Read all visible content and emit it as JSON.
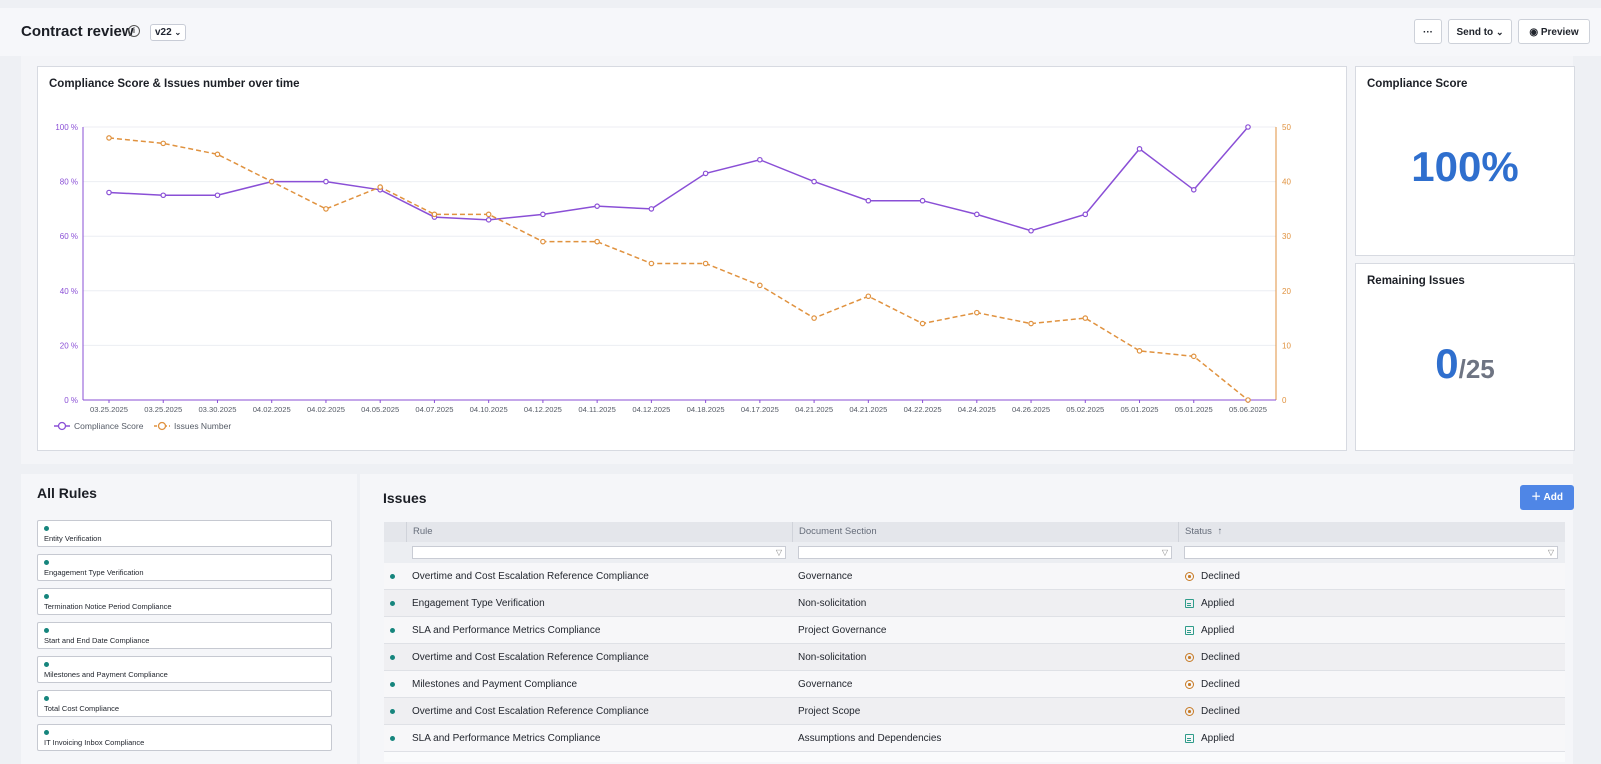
{
  "header": {
    "title": "Contract review",
    "version": "v22",
    "more_label": "···",
    "send_to_label": "Send to",
    "preview_label": "Preview"
  },
  "chart_card": {
    "title": "Compliance Score & Issues number over time"
  },
  "chart_data": {
    "type": "line",
    "x": [
      "03.25.2025",
      "03.25.2025",
      "03.30.2025",
      "04.02.2025",
      "04.02.2025",
      "04.05.2025",
      "04.07.2025",
      "04.10.2025",
      "04.12.2025",
      "04.11.2025",
      "04.12.2025",
      "04.18.2025",
      "04.17.2025",
      "04.21.2025",
      "04.21.2025",
      "04.22.2025",
      "04.24.2025",
      "04.26.2025",
      "05.02.2025",
      "05.01.2025",
      "05.01.2025",
      "05.06.2025"
    ],
    "series": [
      {
        "name": "Compliance Score",
        "axis": "left",
        "color": "#8a4fd6",
        "values": [
          76,
          75,
          75,
          80,
          80,
          77,
          67,
          66,
          68,
          71,
          70,
          83,
          88,
          80,
          73,
          73,
          68,
          62,
          68,
          92,
          77,
          100
        ]
      },
      {
        "name": "Issues Number",
        "axis": "right",
        "color": "#e0923f",
        "dashed": true,
        "values": [
          48,
          47,
          45,
          40,
          35,
          39,
          34,
          34,
          29,
          29,
          25,
          25,
          21,
          15,
          19,
          14,
          16,
          14,
          15,
          9,
          8,
          0
        ]
      }
    ],
    "y_left": {
      "ylim": [
        0,
        100
      ],
      "ticks": [
        "0 %",
        "20 %",
        "40 %",
        "60 %",
        "80 %",
        "100 %"
      ]
    },
    "y_right": {
      "ylim": [
        0,
        50
      ],
      "ticks": [
        "0",
        "10",
        "20",
        "30",
        "40",
        "50"
      ]
    },
    "legend": {
      "placement": "bottom-left"
    },
    "grid": true
  },
  "compliance_card": {
    "title": "Compliance Score",
    "value": "100%"
  },
  "remaining_card": {
    "title": "Remaining Issues",
    "value": "0",
    "total": "/25"
  },
  "rules": {
    "title": "All Rules",
    "items": [
      {
        "label": "Entity Verification"
      },
      {
        "label": "Engagement Type Verification"
      },
      {
        "label": "Termination Notice Period Compliance"
      },
      {
        "label": "Start and End Date Compliance"
      },
      {
        "label": "Milestones and Payment Compliance"
      },
      {
        "label": "Total Cost Compliance"
      },
      {
        "label": "IT Invoicing Inbox Compliance"
      }
    ]
  },
  "issues": {
    "title": "Issues",
    "add_label": "Add",
    "columns": {
      "rule": "Rule",
      "section": "Document Section",
      "status": "Status"
    },
    "sort_indicator": "↑",
    "rows": [
      {
        "rule": "Overtime and Cost Escalation Reference Compliance",
        "section": "Governance",
        "status": "Declined"
      },
      {
        "rule": "Engagement Type Verification",
        "section": "Non-solicitation",
        "status": "Applied"
      },
      {
        "rule": "SLA and Performance Metrics Compliance",
        "section": "Project Governance",
        "status": "Applied"
      },
      {
        "rule": "Overtime and Cost Escalation Reference Compliance",
        "section": "Non-solicitation",
        "status": "Declined"
      },
      {
        "rule": "Milestones and Payment Compliance",
        "section": "Governance",
        "status": "Declined"
      },
      {
        "rule": "Overtime and Cost Escalation Reference Compliance",
        "section": "Project Scope",
        "status": "Declined"
      },
      {
        "rule": "SLA and Performance Metrics Compliance",
        "section": "Assumptions and Dependencies",
        "status": "Applied"
      }
    ]
  }
}
